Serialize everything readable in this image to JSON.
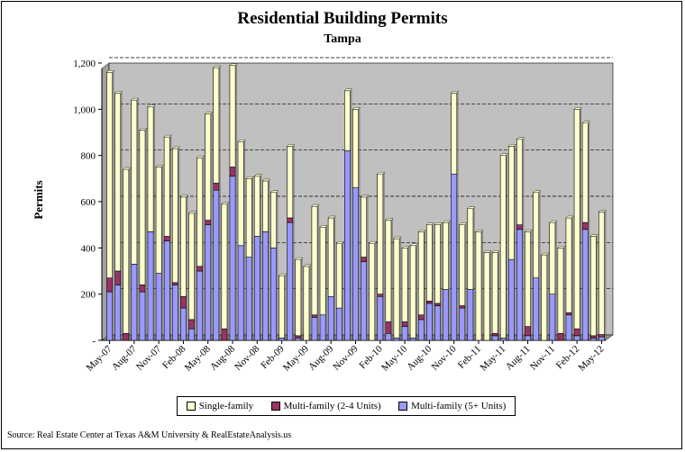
{
  "chart_data": {
    "type": "bar",
    "stacked": true,
    "title": "Residential Building Permits",
    "subtitle": "Tampa",
    "ylabel": "Permits",
    "ylim": [
      0,
      1200
    ],
    "yticks": [
      0,
      200,
      400,
      600,
      800,
      1000,
      1200
    ],
    "ytick_labels": [
      "-",
      "200",
      "400",
      "600",
      "800",
      "1,000",
      "1,200"
    ],
    "grid": true,
    "legend_position": "bottom",
    "source": "Source: Real Estate Center at Texas A&M University & RealEstateAnalysis.us",
    "categories": [
      "May-07",
      "Jun-07",
      "Jul-07",
      "Aug-07",
      "Sep-07",
      "Oct-07",
      "Nov-07",
      "Dec-07",
      "Jan-08",
      "Feb-08",
      "Mar-08",
      "Apr-08",
      "May-08",
      "Jun-08",
      "Jul-08",
      "Aug-08",
      "Sep-08",
      "Oct-08",
      "Nov-08",
      "Dec-08",
      "Jan-09",
      "Feb-09",
      "Mar-09",
      "Apr-09",
      "May-09",
      "Jun-09",
      "Jul-09",
      "Aug-09",
      "Sep-09",
      "Oct-09",
      "Nov-09",
      "Dec-09",
      "Jan-10",
      "Feb-10",
      "Mar-10",
      "Apr-10",
      "May-10",
      "Jun-10",
      "Jul-10",
      "Aug-10",
      "Sep-10",
      "Oct-10",
      "Nov-10",
      "Dec-10",
      "Jan-11",
      "Feb-11",
      "Mar-11",
      "Apr-11",
      "May-11",
      "Jun-11",
      "Jul-11",
      "Aug-11",
      "Sep-11",
      "Oct-11",
      "Nov-11",
      "Dec-11",
      "Jan-12",
      "Feb-12",
      "Mar-12",
      "Apr-12",
      "May-12"
    ],
    "xtick_labels": [
      "May-07",
      "Aug-07",
      "Nov-07",
      "Feb-08",
      "May-08",
      "Aug-08",
      "Nov-08",
      "Feb-09",
      "May-09",
      "Aug-09",
      "Nov-09",
      "Feb-10",
      "May-10",
      "Aug-10",
      "Nov-10",
      "Feb-11",
      "May-11",
      "Aug-11",
      "Nov-11",
      "Feb-12",
      "May-12"
    ],
    "series": [
      {
        "name": "Multi-family (5+ Units)",
        "color": "#9999ff",
        "values": [
          210,
          240,
          0,
          330,
          210,
          470,
          290,
          430,
          240,
          140,
          50,
          300,
          500,
          650,
          0,
          710,
          410,
          360,
          450,
          470,
          400,
          10,
          510,
          10,
          0,
          100,
          110,
          190,
          140,
          820,
          660,
          340,
          0,
          190,
          30,
          10,
          60,
          10,
          90,
          160,
          150,
          220,
          720,
          140,
          220,
          0,
          0,
          20,
          10,
          350,
          480,
          20,
          270,
          0,
          200,
          0,
          110,
          20,
          480,
          10,
          15
        ]
      },
      {
        "name": "Multi-family (2-4 Units)",
        "color": "#993366",
        "values": [
          60,
          60,
          30,
          0,
          30,
          0,
          0,
          20,
          10,
          50,
          40,
          20,
          20,
          30,
          50,
          40,
          0,
          0,
          0,
          0,
          0,
          0,
          20,
          10,
          0,
          10,
          0,
          0,
          0,
          0,
          0,
          20,
          0,
          10,
          50,
          0,
          20,
          0,
          20,
          10,
          10,
          0,
          0,
          10,
          0,
          0,
          0,
          10,
          0,
          0,
          20,
          40,
          0,
          0,
          0,
          30,
          10,
          30,
          30,
          10,
          10
        ]
      },
      {
        "name": "Single-family",
        "color": "#ffffcc",
        "values": [
          890,
          770,
          710,
          710,
          670,
          540,
          460,
          430,
          580,
          430,
          460,
          470,
          460,
          500,
          540,
          440,
          450,
          340,
          260,
          220,
          240,
          270,
          310,
          330,
          320,
          470,
          380,
          340,
          280,
          260,
          340,
          260,
          420,
          520,
          440,
          430,
          320,
          400,
          360,
          330,
          340,
          290,
          350,
          350,
          350,
          470,
          380,
          350,
          790,
          490,
          370,
          410,
          370,
          370,
          310,
          370,
          410,
          950,
          430,
          430,
          530
        ]
      }
    ]
  }
}
